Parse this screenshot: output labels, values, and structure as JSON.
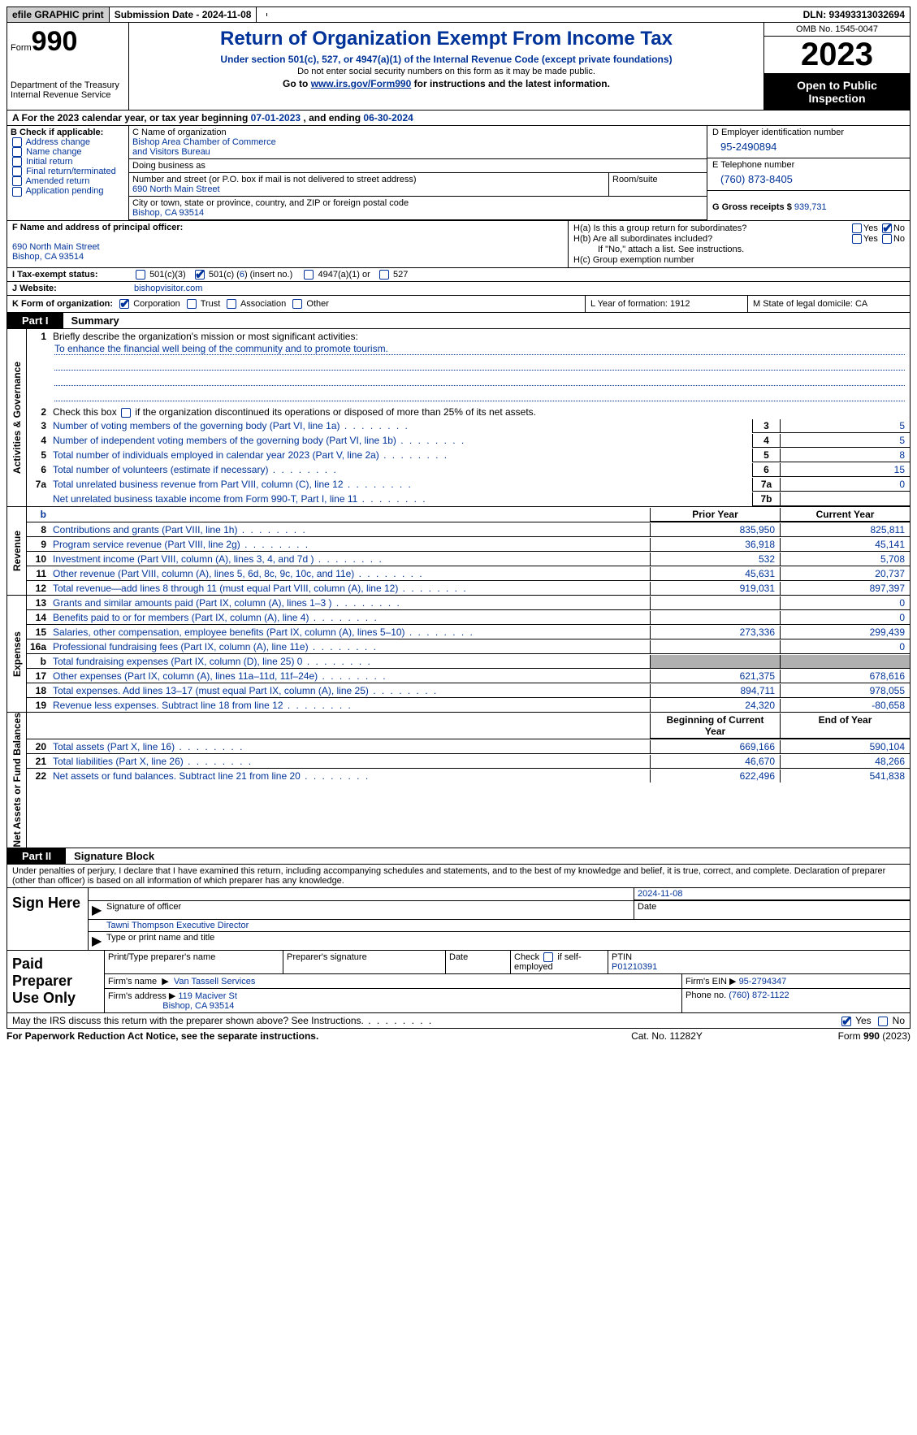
{
  "topbar": {
    "efile": "efile GRAPHIC print",
    "submission": "Submission Date - 2024-11-08",
    "dln": "DLN: 93493313032694"
  },
  "header": {
    "form_label": "Form",
    "form_num": "990",
    "dept": "Department of the Treasury Internal Revenue Service",
    "title": "Return of Organization Exempt From Income Tax",
    "sub": "Under section 501(c), 527, or 4947(a)(1) of the Internal Revenue Code (except private foundations)",
    "note1": "Do not enter social security numbers on this form as it may be made public.",
    "goto_pre": "Go to ",
    "goto_link": "www.irs.gov/Form990",
    "goto_post": " for instructions and the latest information.",
    "omb": "OMB No. 1545-0047",
    "year": "2023",
    "open": "Open to Public Inspection"
  },
  "rowA": {
    "label": "A For the 2023 calendar year, or tax year beginning ",
    "begin": "07-01-2023",
    "mid": "   , and ending ",
    "end": "06-30-2024"
  },
  "colB": {
    "label": "B Check if applicable:",
    "opts": [
      "Address change",
      "Name change",
      "Initial return",
      "Final return/terminated",
      "Amended return",
      "Application pending"
    ]
  },
  "colC": {
    "name_label": "C Name of organization",
    "name1": "Bishop Area Chamber of Commerce",
    "name2": "and Visitors Bureau",
    "dba_label": "Doing business as",
    "street_label": "Number and street (or P.O. box if mail is not delivered to street address)",
    "street": "690 North Main Street",
    "room_label": "Room/suite",
    "city_label": "City or town, state or province, country, and ZIP or foreign postal code",
    "city": "Bishop, CA  93514"
  },
  "colD": {
    "ein_label": "D Employer identification number",
    "ein": "95-2490894",
    "tel_label": "E Telephone number",
    "tel": "(760) 873-8405",
    "gross_label": "G Gross receipts $ ",
    "gross": "939,731"
  },
  "colF": {
    "label": "F  Name and address of principal officer:",
    "addr1": "690 North Main Street",
    "addr2": "Bishop, CA  93514"
  },
  "colH": {
    "ha": "H(a)  Is this a group return for subordinates?",
    "hb": "H(b)  Are all subordinates included?",
    "hb_note": "If \"No,\" attach a list. See instructions.",
    "hc": "H(c)  Group exemption number"
  },
  "rowI": {
    "label": "I    Tax-exempt status:",
    "o1": "501(c)(3)",
    "o2_a": "501(c) (",
    "o2_n": "6",
    "o2_b": ") (insert no.)",
    "o3": "4947(a)(1) or",
    "o4": "527"
  },
  "rowJ": {
    "label": "J    Website:",
    "val": "bishopvisitor.com"
  },
  "rowK": {
    "label": "K Form of organization:",
    "opts": [
      "Corporation",
      "Trust",
      "Association",
      "Other"
    ],
    "l": "L Year of formation: 1912",
    "m": "M State of legal domicile: CA"
  },
  "part1": {
    "tag": "Part I",
    "title": "Summary"
  },
  "summary": {
    "sec1_label": "Activities & Governance",
    "l1_desc": "Briefly describe the organization's mission or most significant activities:",
    "l1_mission": "To enhance the financial well being of the community and to promote tourism.",
    "l2_desc": "Check this box    if the organization discontinued its operations or disposed of more than 25% of its net assets.",
    "lines_gov": [
      {
        "n": "3",
        "d": "Number of voting members of the governing body (Part VI, line 1a)",
        "bn": "3",
        "v": "5"
      },
      {
        "n": "4",
        "d": "Number of independent voting members of the governing body (Part VI, line 1b)",
        "bn": "4",
        "v": "5"
      },
      {
        "n": "5",
        "d": "Total number of individuals employed in calendar year 2023 (Part V, line 2a)",
        "bn": "5",
        "v": "8"
      },
      {
        "n": "6",
        "d": "Total number of volunteers (estimate if necessary)",
        "bn": "6",
        "v": "15"
      },
      {
        "n": "7a",
        "d": "Total unrelated business revenue from Part VIII, column (C), line 12",
        "bn": "7a",
        "v": "0"
      },
      {
        "n": "",
        "d": "Net unrelated business taxable income from Form 990-T, Part I, line 11",
        "bn": "7b",
        "v": ""
      }
    ],
    "sec2_label": "Revenue",
    "hdr_py": "Prior Year",
    "hdr_cy": "Current Year",
    "lines_rev": [
      {
        "n": "8",
        "d": "Contributions and grants (Part VIII, line 1h)",
        "py": "835,950",
        "cy": "825,811"
      },
      {
        "n": "9",
        "d": "Program service revenue (Part VIII, line 2g)",
        "py": "36,918",
        "cy": "45,141"
      },
      {
        "n": "10",
        "d": "Investment income (Part VIII, column (A), lines 3, 4, and 7d )",
        "py": "532",
        "cy": "5,708"
      },
      {
        "n": "11",
        "d": "Other revenue (Part VIII, column (A), lines 5, 6d, 8c, 9c, 10c, and 11e)",
        "py": "45,631",
        "cy": "20,737"
      },
      {
        "n": "12",
        "d": "Total revenue—add lines 8 through 11 (must equal Part VIII, column (A), line 12)",
        "py": "919,031",
        "cy": "897,397"
      }
    ],
    "sec3_label": "Expenses",
    "lines_exp": [
      {
        "n": "13",
        "d": "Grants and similar amounts paid (Part IX, column (A), lines 1–3 )",
        "py": "",
        "cy": "0"
      },
      {
        "n": "14",
        "d": "Benefits paid to or for members (Part IX, column (A), line 4)",
        "py": "",
        "cy": "0"
      },
      {
        "n": "15",
        "d": "Salaries, other compensation, employee benefits (Part IX, column (A), lines 5–10)",
        "py": "273,336",
        "cy": "299,439"
      },
      {
        "n": "16a",
        "d": "Professional fundraising fees (Part IX, column (A), line 11e)",
        "py": "",
        "cy": "0"
      },
      {
        "n": "b",
        "d": "Total fundraising expenses (Part IX, column (D), line 25) 0",
        "py": "shade",
        "cy": "shade"
      },
      {
        "n": "17",
        "d": "Other expenses (Part IX, column (A), lines 11a–11d, 11f–24e)",
        "py": "621,375",
        "cy": "678,616"
      },
      {
        "n": "18",
        "d": "Total expenses. Add lines 13–17 (must equal Part IX, column (A), line 25)",
        "py": "894,711",
        "cy": "978,055"
      },
      {
        "n": "19",
        "d": "Revenue less expenses. Subtract line 18 from line 12",
        "py": "24,320",
        "cy": "-80,658"
      }
    ],
    "sec4_label": "Net Assets or Fund Balances",
    "hdr_bcy": "Beginning of Current Year",
    "hdr_eoy": "End of Year",
    "lines_na": [
      {
        "n": "20",
        "d": "Total assets (Part X, line 16)",
        "py": "669,166",
        "cy": "590,104"
      },
      {
        "n": "21",
        "d": "Total liabilities (Part X, line 26)",
        "py": "46,670",
        "cy": "48,266"
      },
      {
        "n": "22",
        "d": "Net assets or fund balances. Subtract line 21 from line 20",
        "py": "622,496",
        "cy": "541,838"
      }
    ]
  },
  "part2": {
    "tag": "Part II",
    "title": "Signature Block"
  },
  "sig": {
    "intro": "Under penalties of perjury, I declare that I have examined this return, including accompanying schedules and statements, and to the best of my knowledge and belief, it is true, correct, and complete. Declaration of preparer (other than officer) is based on all information of which preparer has any knowledge.",
    "sign_here": "Sign Here",
    "date": "2024-11-08",
    "sig_label": "Signature of officer",
    "date_label": "Date",
    "name": "Tawni Thompson  Executive Director",
    "name_label": "Type or print name and title"
  },
  "prep": {
    "label": "Paid Preparer Use Only",
    "h1": "Print/Type preparer's name",
    "h2": "Preparer's signature",
    "h3": "Date",
    "h4_a": "Check",
    "h4_b": "if self-employed",
    "h5": "PTIN",
    "ptin": "P01210391",
    "firm_name_l": "Firm's name",
    "firm_name": "Van Tassell Services",
    "firm_ein_l": "Firm's EIN",
    "firm_ein": "95-2794347",
    "firm_addr_l": "Firm's address",
    "firm_addr1": "119 Maciver St",
    "firm_addr2": "Bishop, CA  93514",
    "phone_l": "Phone no.",
    "phone": "(760) 872-1122"
  },
  "discuss": "May the IRS discuss this return with the preparer shown above? See Instructions.",
  "footer": {
    "l": "For Paperwork Reduction Act Notice, see the separate instructions.",
    "c": "Cat. No. 11282Y",
    "r_a": "Form ",
    "r_b": "990",
    "r_c": " (2023)"
  },
  "yn": {
    "yes": "Yes",
    "no": "No"
  }
}
